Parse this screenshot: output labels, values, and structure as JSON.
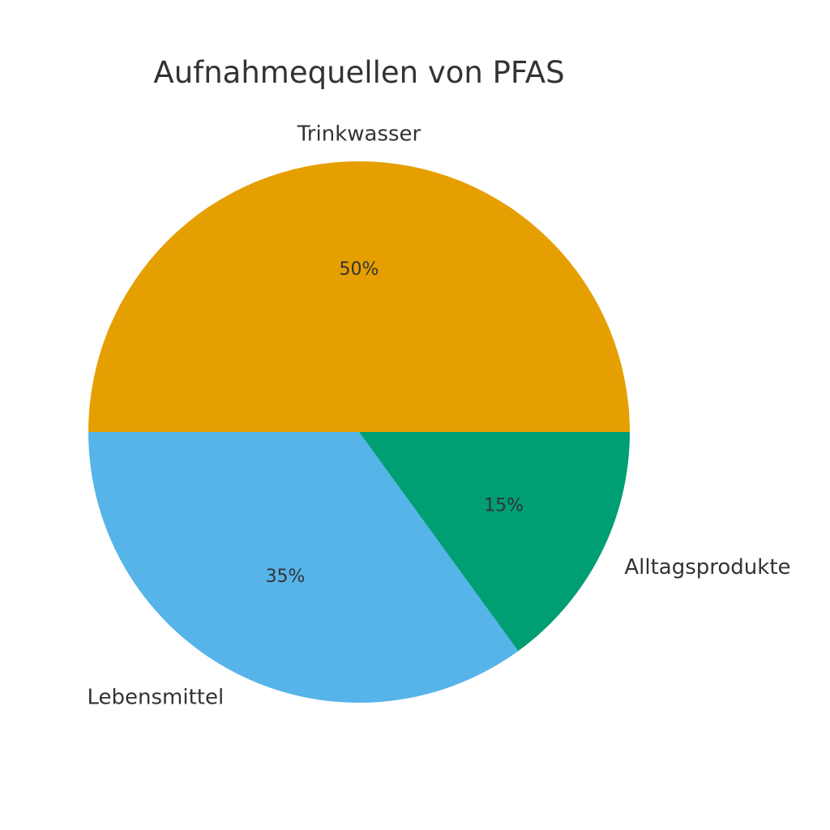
{
  "chart_data": {
    "type": "pie",
    "title": "Aufnahmequellen von PFAS",
    "categories": [
      "Trinkwasser",
      "Lebensmittel",
      "Alltagsprodukte"
    ],
    "values": [
      50,
      35,
      15
    ],
    "value_labels": [
      "50%",
      "35%",
      "15%"
    ],
    "colors": [
      "#E69F00",
      "#56B4E9",
      "#009E73"
    ],
    "start_angle_deg": 0,
    "direction": "counterclockwise",
    "legend": "none"
  }
}
